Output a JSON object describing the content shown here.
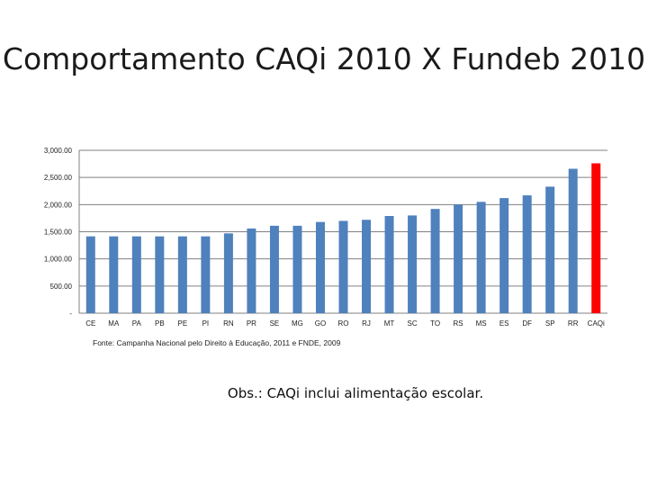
{
  "title": "Comportamento CAQi 2010 X Fundeb 2010",
  "source": "Fonte: Campanha Nacional pelo Direito à Educação, 2011 e FNDE, 2009",
  "note": "Obs.: CAQi inclui alimentação escolar.",
  "colors": {
    "bar": "#4f81bd",
    "highlight": "#ff0000",
    "grid": "#808080"
  },
  "chart_data": {
    "type": "bar",
    "title": "",
    "xlabel": "",
    "ylabel": "",
    "ylim": [
      0,
      3000
    ],
    "grid": true,
    "legend": "none",
    "y_ticks": [
      0,
      500,
      1000,
      1500,
      2000,
      2500,
      3000
    ],
    "y_tick_labels": [
      "-",
      "500.00",
      "1,000.00",
      "1,500.00",
      "2,000.00",
      "2,500.00",
      "3,000.00"
    ],
    "categories": [
      "CE",
      "MA",
      "PA",
      "PB",
      "PE",
      "PI",
      "RN",
      "PR",
      "SE",
      "MG",
      "GO",
      "RO",
      "RJ",
      "MT",
      "SC",
      "TO",
      "RS",
      "MS",
      "ES",
      "DF",
      "SP",
      "RR",
      "CAQi"
    ],
    "values": [
      1415,
      1415,
      1415,
      1415,
      1415,
      1415,
      1470,
      1560,
      1610,
      1610,
      1680,
      1700,
      1720,
      1790,
      1800,
      1920,
      2000,
      2050,
      2120,
      2170,
      2330,
      2660,
      2760
    ],
    "highlight_category": "CAQi"
  }
}
